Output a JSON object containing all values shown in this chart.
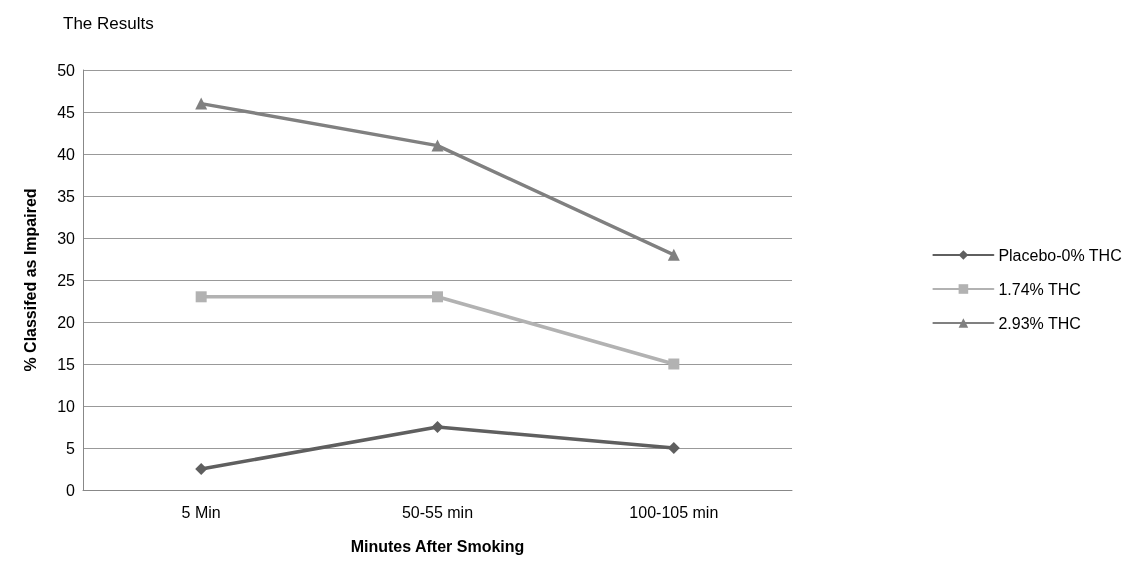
{
  "chart_data": {
    "type": "line",
    "title": "The Results",
    "xlabel": "Minutes After Smoking",
    "ylabel": "% Classifed as Impaired",
    "categories": [
      "5 Min",
      "50-55 min",
      "100-105 min"
    ],
    "series": [
      {
        "name": "Placebo-0% THC",
        "color": "#5f5f5f",
        "marker": "diamond",
        "values": [
          2.5,
          7.5,
          5
        ]
      },
      {
        "name": "1.74% THC",
        "color": "#b2b2b2",
        "marker": "square",
        "values": [
          23,
          23,
          15
        ]
      },
      {
        "name": "2.93% THC",
        "color": "#808080",
        "marker": "triangle",
        "values": [
          46,
          41,
          28
        ]
      }
    ],
    "ylim": [
      0,
      50
    ],
    "yticks": [
      0,
      5,
      10,
      15,
      20,
      25,
      30,
      35,
      40,
      45,
      50
    ],
    "grid": "y",
    "legend": "right",
    "line_style": "solid"
  }
}
